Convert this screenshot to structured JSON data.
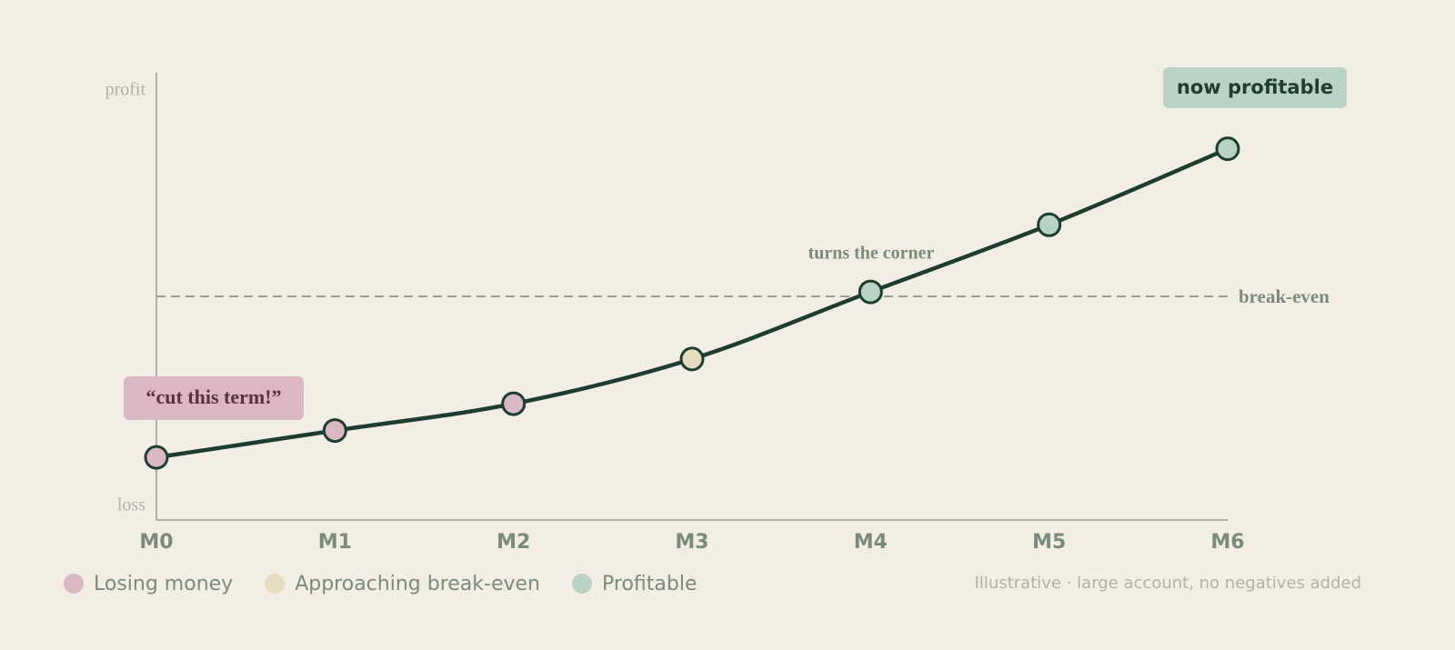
{
  "chart_data": {
    "type": "line",
    "categories": [
      "M0",
      "M1",
      "M2",
      "M3",
      "M4",
      "M5",
      "M6"
    ],
    "values": [
      14,
      20,
      26,
      36,
      51,
      66,
      83
    ],
    "line_color": "#1e3d30",
    "point_colors": [
      "#d9b8c4",
      "#d9b8c4",
      "#d9b8c4",
      "#e6dcbf",
      "#b8d3c5",
      "#b8d3c5",
      "#b8d3c5"
    ],
    "ylim": [
      0,
      100
    ],
    "y_axis_labels": {
      "top": "profit",
      "bottom": "loss"
    },
    "reference_line": {
      "value": 50,
      "label": "break-even"
    },
    "annotations": [
      "“cut this term!”",
      "turns the corner",
      "now profitable"
    ],
    "legend": [
      {
        "name": "Losing money",
        "color": "#d9b8c4"
      },
      {
        "name": "Approaching break-even",
        "color": "#e6dcbf"
      },
      {
        "name": "Profitable",
        "color": "#b8d3c5"
      }
    ],
    "footnote": "Illustrative · large account, no negatives added"
  }
}
